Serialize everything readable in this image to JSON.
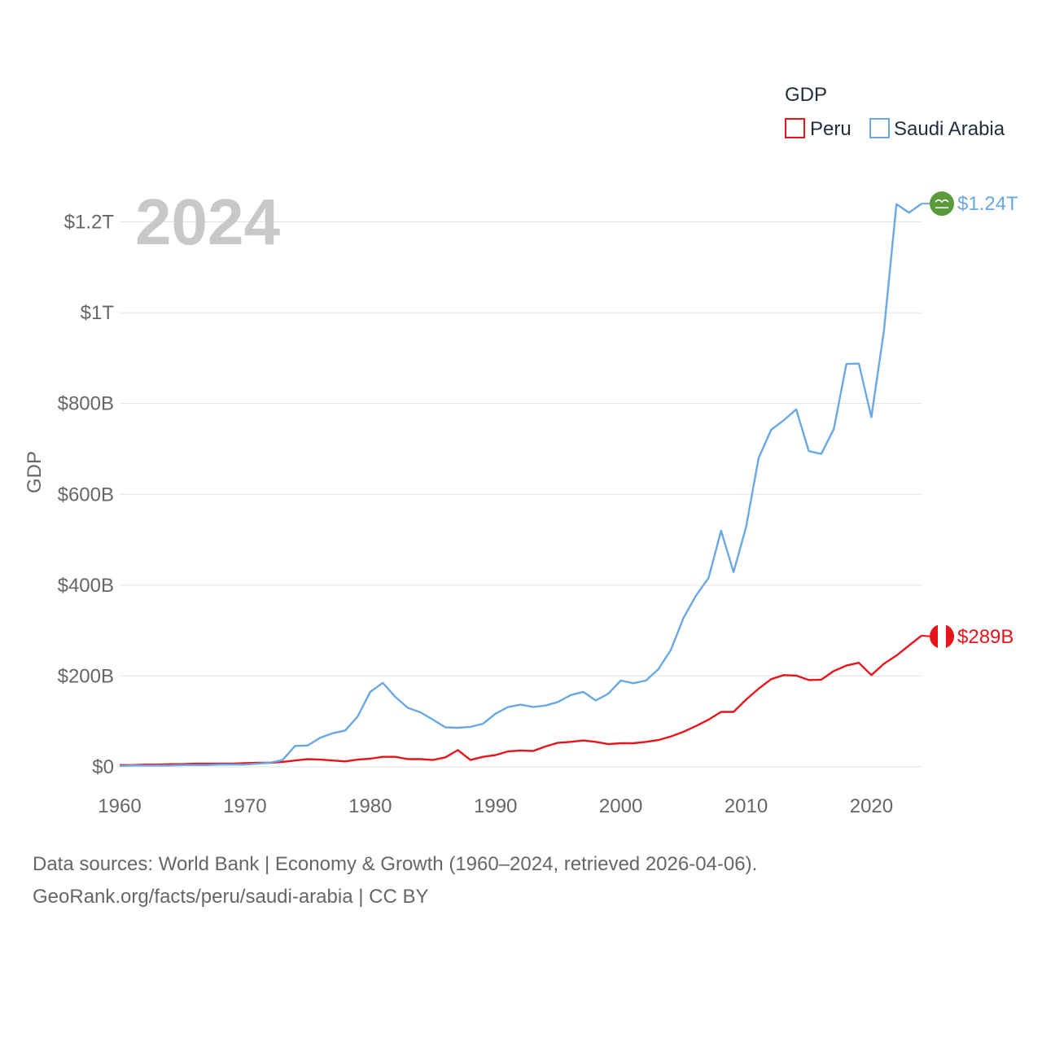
{
  "chart_data": {
    "type": "line",
    "year_label": "2024",
    "ylabel": "GDP",
    "legend": {
      "title": "GDP",
      "placement": "top-right"
    },
    "x_ticks": [
      1960,
      1970,
      1980,
      1990,
      2000,
      2010,
      2020
    ],
    "y_ticks": [
      {
        "value": 0,
        "label": "$0"
      },
      {
        "value": 200,
        "label": "$200B"
      },
      {
        "value": 400,
        "label": "$400B"
      },
      {
        "value": 600,
        "label": "$600B"
      },
      {
        "value": 800,
        "label": "$800B"
      },
      {
        "value": 1000,
        "label": "$1T"
      },
      {
        "value": 1200,
        "label": "$1.2T"
      }
    ],
    "ylim": [
      0,
      1300
    ],
    "xlim": [
      1960,
      2024
    ],
    "units": "billion US$",
    "x": [
      1960,
      1961,
      1962,
      1963,
      1964,
      1965,
      1966,
      1967,
      1968,
      1969,
      1970,
      1971,
      1972,
      1973,
      1974,
      1975,
      1976,
      1977,
      1978,
      1979,
      1980,
      1981,
      1982,
      1983,
      1984,
      1985,
      1986,
      1987,
      1988,
      1989,
      1990,
      1991,
      1992,
      1993,
      1994,
      1995,
      1996,
      1997,
      1998,
      1999,
      2000,
      2001,
      2002,
      2003,
      2004,
      2005,
      2006,
      2007,
      2008,
      2009,
      2010,
      2011,
      2012,
      2013,
      2014,
      2015,
      2016,
      2017,
      2018,
      2019,
      2020,
      2021,
      2022,
      2023,
      2024
    ],
    "series": [
      {
        "name": "Peru",
        "color": "#e8141c",
        "end_label": "$289B",
        "values": [
          4,
          4,
          5,
          5,
          6,
          6,
          7,
          7,
          7,
          7,
          8,
          9,
          9,
          11,
          14,
          17,
          16,
          14,
          12,
          16,
          18,
          22,
          22,
          17,
          17,
          15,
          21,
          37,
          15,
          22,
          26,
          34,
          36,
          35,
          45,
          53,
          55,
          58,
          55,
          50,
          52,
          52,
          55,
          59,
          67,
          77,
          90,
          104,
          121,
          121,
          148,
          172,
          193,
          202,
          201,
          191,
          192,
          211,
          223,
          229,
          202,
          227,
          245,
          267,
          289
        ]
      },
      {
        "name": "Saudi Arabia",
        "color": "#6aa8e3",
        "end_label": "$1.24T",
        "values": [
          2,
          3,
          3,
          3,
          3,
          4,
          4,
          4,
          5,
          5,
          5,
          7,
          9,
          15,
          46,
          47,
          64,
          74,
          80,
          111,
          165,
          185,
          154,
          130,
          120,
          104,
          87,
          86,
          88,
          95,
          117,
          132,
          137,
          132,
          135,
          143,
          158,
          165,
          146,
          161,
          190,
          184,
          190,
          215,
          258,
          328,
          377,
          416,
          520,
          429,
          528,
          680,
          742,
          763,
          787,
          695,
          689,
          744,
          887,
          888,
          770,
          960,
          1239,
          1220,
          1240
        ]
      }
    ]
  },
  "footer": {
    "line1": "Data sources: World Bank | Economy & Growth (1960–2024, retrieved 2026-04-06).",
    "line2": "GeoRank.org/facts/peru/saudi-arabia | CC BY"
  }
}
